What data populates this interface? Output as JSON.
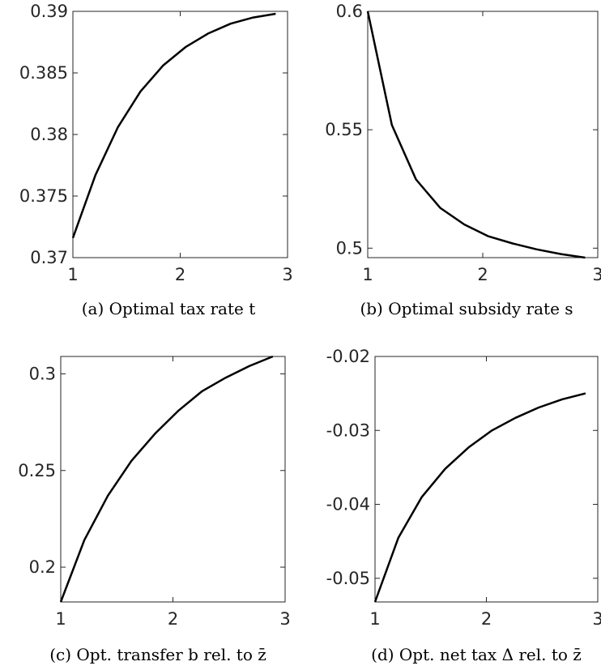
{
  "chart_data": [
    {
      "type": "line",
      "caption": "(a) Optimal tax rate t",
      "x": [
        1.0,
        1.21,
        1.42,
        1.63,
        1.84,
        2.05,
        2.26,
        2.47,
        2.68,
        2.89
      ],
      "series": [
        {
          "values": [
            0.3716,
            0.3767,
            0.3806,
            0.3835,
            0.3856,
            0.3871,
            0.3882,
            0.389,
            0.3895,
            0.3898
          ]
        }
      ],
      "xlim": [
        1,
        3
      ],
      "ylim": [
        0.37,
        0.39
      ],
      "xticks": [
        1,
        2,
        3
      ],
      "xtick_labels": [
        "1",
        "2",
        "3"
      ],
      "yticks": [
        0.37,
        0.375,
        0.38,
        0.385,
        0.39
      ],
      "ytick_labels": [
        "0.37",
        "0.375",
        "0.38",
        "0.385",
        "0.39"
      ],
      "grid": false
    },
    {
      "type": "line",
      "caption": "(b) Optimal subsidy rate s",
      "x": [
        1.0,
        1.21,
        1.42,
        1.63,
        1.84,
        2.05,
        2.26,
        2.47,
        2.68,
        2.89
      ],
      "series": [
        {
          "values": [
            0.6,
            0.552,
            0.529,
            0.517,
            0.51,
            0.505,
            0.502,
            0.4995,
            0.4975,
            0.496
          ]
        }
      ],
      "xlim": [
        1,
        3
      ],
      "ylim": [
        0.496,
        0.6
      ],
      "xticks": [
        1,
        2,
        3
      ],
      "xtick_labels": [
        "1",
        "2",
        "3"
      ],
      "yticks": [
        0.5,
        0.55,
        0.6
      ],
      "ytick_labels": [
        "0.5",
        "0.55",
        "0.6"
      ],
      "grid": false
    },
    {
      "type": "line",
      "caption": "(c) Opt. transfer b rel. to z̄",
      "x": [
        1.0,
        1.21,
        1.42,
        1.63,
        1.84,
        2.05,
        2.26,
        2.47,
        2.68,
        2.89
      ],
      "series": [
        {
          "values": [
            0.182,
            0.214,
            0.237,
            0.255,
            0.269,
            0.281,
            0.291,
            0.298,
            0.304,
            0.309
          ]
        }
      ],
      "xlim": [
        1,
        3
      ],
      "ylim": [
        0.182,
        0.309
      ],
      "xticks": [
        1,
        2,
        3
      ],
      "xtick_labels": [
        "1",
        "2",
        "3"
      ],
      "yticks": [
        0.2,
        0.25,
        0.3
      ],
      "ytick_labels": [
        "0.2",
        "0.25",
        "0.3"
      ],
      "grid": false
    },
    {
      "type": "line",
      "caption": "(d) Opt. net tax Δ rel. to z̄",
      "x": [
        1.0,
        1.21,
        1.42,
        1.63,
        1.84,
        2.05,
        2.26,
        2.47,
        2.68,
        2.89
      ],
      "series": [
        {
          "values": [
            -0.0532,
            -0.0445,
            -0.039,
            -0.0352,
            -0.0323,
            -0.03,
            -0.0283,
            -0.0269,
            -0.0258,
            -0.025
          ]
        }
      ],
      "xlim": [
        1,
        3
      ],
      "ylim": [
        -0.0532,
        -0.02
      ],
      "xticks": [
        1,
        2,
        3
      ],
      "xtick_labels": [
        "1",
        "2",
        "3"
      ],
      "yticks": [
        -0.05,
        -0.04,
        -0.03,
        -0.02
      ],
      "ytick_labels": [
        "-0.05",
        "-0.04",
        "-0.03",
        "-0.02"
      ],
      "grid": false
    }
  ]
}
